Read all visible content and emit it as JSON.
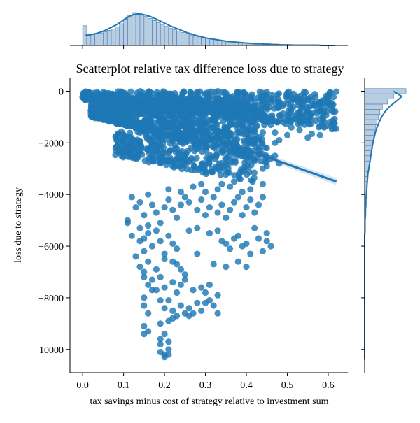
{
  "chart_data": {
    "type": "scatter",
    "title": "Scatterplot relative tax difference loss due to strategy",
    "xlabel": "tax savings minus cost of strategy relative to investment sum",
    "ylabel": "loss due to strategy",
    "xlim": [
      -0.031,
      0.648
    ],
    "ylim": [
      -10900,
      500
    ],
    "x_ticks": [
      0.0,
      0.1,
      0.2,
      0.3,
      0.4,
      0.5,
      0.6
    ],
    "x_tick_labels": [
      "0.0",
      "0.1",
      "0.2",
      "0.3",
      "0.4",
      "0.5",
      "0.6"
    ],
    "y_ticks": [
      0,
      -2000,
      -4000,
      -6000,
      -8000,
      -10000
    ],
    "y_tick_labels": [
      "0",
      "−2000",
      "−4000",
      "−6000",
      "−8000",
      "−10000"
    ],
    "grid": false,
    "marginals": "histogram with KDE on top (x) and right (y)",
    "colors": {
      "points": "#1f77b4",
      "hist_fill": "#b7cde2",
      "hist_edge": "#4a7ab0",
      "regression": "#1f77b4"
    },
    "regression_line": {
      "x": [
        0.0,
        0.62
      ],
      "y": [
        -20,
        -3500
      ]
    },
    "clusters": [
      {
        "x_range": [
          0.0,
          0.62
        ],
        "y_top": 0,
        "y_bottom_at_x0": -400,
        "y_bottom_at_x1": -1500,
        "n": 700,
        "role": "dense band near zero"
      },
      {
        "x_range": [
          0.02,
          0.45
        ],
        "y_top": -300,
        "y_bottom_at_x0": -1000,
        "y_bottom_at_x1": -2800,
        "n": 900,
        "role": "main wedge"
      },
      {
        "x_range": [
          0.08,
          0.42
        ],
        "y_top": -1500,
        "y_bottom_at_x0": -2500,
        "y_bottom_at_x1": -3600,
        "n": 350,
        "role": "lower wedge"
      }
    ],
    "points": [
      [
        0.12,
        -4100
      ],
      [
        0.13,
        -4500
      ],
      [
        0.14,
        -4300
      ],
      [
        0.15,
        -4800
      ],
      [
        0.16,
        -4000
      ],
      [
        0.17,
        -4400
      ],
      [
        0.11,
        -5000
      ],
      [
        0.14,
        -5300
      ],
      [
        0.15,
        -5700
      ],
      [
        0.16,
        -5200
      ],
      [
        0.18,
        -4700
      ],
      [
        0.19,
        -5100
      ],
      [
        0.2,
        -4500
      ],
      [
        0.21,
        -4200
      ],
      [
        0.22,
        -4600
      ],
      [
        0.23,
        -4900
      ],
      [
        0.24,
        -4400
      ],
      [
        0.25,
        -4100
      ],
      [
        0.26,
        -4300
      ],
      [
        0.28,
        -4600
      ],
      [
        0.29,
        -4200
      ],
      [
        0.3,
        -4800
      ],
      [
        0.31,
        -4500
      ],
      [
        0.32,
        -4100
      ],
      [
        0.33,
        -4700
      ],
      [
        0.34,
        -4400
      ],
      [
        0.35,
        -4900
      ],
      [
        0.36,
        -4600
      ],
      [
        0.37,
        -4300
      ],
      [
        0.38,
        -4100
      ],
      [
        0.39,
        -4800
      ],
      [
        0.4,
        -4500
      ],
      [
        0.41,
        -4200
      ],
      [
        0.42,
        -4700
      ],
      [
        0.43,
        -4400
      ],
      [
        0.44,
        -4100
      ],
      [
        0.21,
        -3800
      ],
      [
        0.24,
        -3900
      ],
      [
        0.27,
        -3700
      ],
      [
        0.3,
        -3900
      ],
      [
        0.33,
        -3800
      ],
      [
        0.36,
        -3700
      ],
      [
        0.39,
        -3900
      ],
      [
        0.41,
        -3800
      ],
      [
        0.44,
        -3600
      ],
      [
        0.37,
        -3500
      ],
      [
        0.34,
        -3600
      ],
      [
        0.29,
        -3600
      ],
      [
        0.11,
        -5100
      ],
      [
        0.12,
        -5600
      ],
      [
        0.14,
        -5800
      ],
      [
        0.15,
        -6200
      ],
      [
        0.16,
        -5500
      ],
      [
        0.17,
        -6000
      ],
      [
        0.18,
        -5400
      ],
      [
        0.19,
        -5800
      ],
      [
        0.2,
        -6300
      ],
      [
        0.21,
        -5600
      ],
      [
        0.22,
        -5900
      ],
      [
        0.23,
        -6100
      ],
      [
        0.26,
        -5400
      ],
      [
        0.28,
        -5300
      ],
      [
        0.31,
        -5500
      ],
      [
        0.33,
        -5400
      ],
      [
        0.34,
        -5800
      ],
      [
        0.35,
        -5900
      ],
      [
        0.36,
        -6100
      ],
      [
        0.37,
        -5700
      ],
      [
        0.38,
        -5600
      ],
      [
        0.4,
        -5900
      ],
      [
        0.42,
        -5300
      ],
      [
        0.43,
        -5700
      ],
      [
        0.45,
        -5800
      ],
      [
        0.46,
        -6000
      ],
      [
        0.44,
        -6200
      ],
      [
        0.41,
        -6300
      ],
      [
        0.39,
        -6000
      ],
      [
        0.45,
        -5500
      ],
      [
        0.13,
        -6400
      ],
      [
        0.14,
        -6800
      ],
      [
        0.15,
        -7000
      ],
      [
        0.16,
        -6600
      ],
      [
        0.18,
        -6900
      ],
      [
        0.2,
        -6500
      ],
      [
        0.22,
        -6600
      ],
      [
        0.23,
        -6700
      ],
      [
        0.24,
        -6900
      ],
      [
        0.25,
        -7100
      ],
      [
        0.28,
        -6300
      ],
      [
        0.32,
        -6700
      ],
      [
        0.38,
        -6600
      ],
      [
        0.4,
        -6800
      ],
      [
        0.35,
        -6800
      ],
      [
        0.15,
        -7200
      ],
      [
        0.16,
        -7500
      ],
      [
        0.17,
        -7300
      ],
      [
        0.18,
        -7700
      ],
      [
        0.19,
        -7200
      ],
      [
        0.2,
        -7600
      ],
      [
        0.22,
        -7400
      ],
      [
        0.23,
        -7800
      ],
      [
        0.24,
        -7500
      ],
      [
        0.25,
        -7300
      ],
      [
        0.27,
        -7700
      ],
      [
        0.29,
        -7600
      ],
      [
        0.3,
        -7800
      ],
      [
        0.31,
        -7500
      ],
      [
        0.33,
        -7900
      ],
      [
        0.17,
        -7700
      ],
      [
        0.15,
        -8000
      ],
      [
        0.15,
        -8300
      ],
      [
        0.16,
        -8600
      ],
      [
        0.19,
        -8100
      ],
      [
        0.2,
        -8400
      ],
      [
        0.21,
        -8100
      ],
      [
        0.22,
        -8500
      ],
      [
        0.23,
        -8700
      ],
      [
        0.24,
        -8300
      ],
      [
        0.25,
        -8600
      ],
      [
        0.26,
        -8400
      ],
      [
        0.27,
        -8600
      ],
      [
        0.28,
        -8200
      ],
      [
        0.29,
        -8500
      ],
      [
        0.3,
        -8200
      ],
      [
        0.31,
        -8100
      ],
      [
        0.32,
        -8300
      ],
      [
        0.33,
        -8600
      ],
      [
        0.21,
        -8900
      ],
      [
        0.22,
        -8800
      ],
      [
        0.19,
        -9000
      ],
      [
        0.26,
        -8700
      ],
      [
        0.15,
        -9100
      ],
      [
        0.15,
        -9400
      ],
      [
        0.16,
        -9300
      ],
      [
        0.19,
        -9600
      ],
      [
        0.19,
        -9800
      ],
      [
        0.2,
        -9400
      ],
      [
        0.19,
        -10100
      ],
      [
        0.2,
        -10200
      ],
      [
        0.2,
        -10300
      ],
      [
        0.21,
        -10200
      ],
      [
        0.21,
        -10000
      ],
      [
        0.21,
        -9700
      ],
      [
        0.46,
        -1300
      ],
      [
        0.47,
        -1600
      ],
      [
        0.49,
        -1200
      ],
      [
        0.51,
        -1400
      ],
      [
        0.53,
        -1500
      ],
      [
        0.55,
        -1800
      ],
      [
        0.58,
        -1700
      ],
      [
        0.59,
        -1400
      ],
      [
        0.62,
        -1450
      ],
      [
        0.56,
        -1650
      ],
      [
        0.48,
        -1900
      ],
      [
        0.5,
        -1700
      ],
      [
        0.44,
        -1600
      ],
      [
        0.47,
        -2000
      ],
      [
        0.45,
        -2200
      ],
      [
        0.43,
        -2400
      ],
      [
        0.46,
        -2600
      ],
      [
        0.45,
        -2900
      ],
      [
        0.47,
        -2500
      ],
      [
        0.48,
        -2800
      ],
      [
        0.42,
        -2700
      ],
      [
        0.44,
        -3000
      ],
      [
        0.5,
        -200
      ],
      [
        0.52,
        -300
      ],
      [
        0.54,
        -400
      ],
      [
        0.56,
        -350
      ],
      [
        0.58,
        -500
      ],
      [
        0.6,
        -300
      ],
      [
        0.48,
        -600
      ],
      [
        0.51,
        -700
      ],
      [
        0.53,
        -800
      ],
      [
        0.49,
        -500
      ],
      [
        0.55,
        -650
      ],
      [
        0.52,
        -950
      ]
    ],
    "marginal_x": {
      "bin_start": 0.0,
      "bin_width": 0.01,
      "counts": [
        60,
        34,
        34,
        36,
        38,
        42,
        46,
        50,
        56,
        66,
        80,
        90,
        100,
        95,
        92,
        88,
        82,
        76,
        70,
        64,
        58,
        52,
        48,
        44,
        40,
        36,
        32,
        28,
        26,
        24,
        22,
        20,
        18,
        16,
        14,
        12,
        11,
        10,
        9,
        8,
        7,
        6,
        5,
        5,
        4,
        4,
        3,
        3,
        2,
        2,
        2,
        1,
        1,
        1,
        1,
        1,
        1,
        0,
        0,
        0,
        0,
        1
      ],
      "kde_y": [
        30,
        32,
        34,
        37,
        41,
        46,
        52,
        58,
        65,
        73,
        82,
        89,
        94,
        96,
        95,
        92,
        88,
        83,
        77,
        71,
        65,
        59,
        54,
        49,
        44,
        39,
        35,
        31,
        28,
        25,
        22,
        20,
        18,
        16,
        14,
        12,
        11,
        10,
        9,
        8,
        7,
        6,
        5,
        5,
        4,
        4,
        3,
        3,
        2,
        2,
        2,
        1,
        1,
        1,
        1,
        1,
        1,
        1,
        0,
        0,
        0,
        0
      ]
    },
    "marginal_y": {
      "bin_start": -10500,
      "bin_width": 200,
      "counts": [
        0,
        0,
        0,
        0,
        0,
        0,
        0,
        0,
        0,
        0,
        0,
        0,
        0,
        0,
        0,
        0,
        0,
        0,
        0,
        0,
        0,
        0,
        0,
        0,
        0,
        1,
        1,
        1,
        1,
        2,
        2,
        3,
        4,
        5,
        6,
        7,
        8,
        10,
        12,
        14,
        16,
        18,
        20,
        22,
        24,
        27,
        30,
        33,
        37,
        43,
        55,
        70,
        100
      ],
      "kde_x": [
        0,
        0,
        0,
        0,
        0,
        0,
        0,
        0,
        0,
        0,
        0,
        0,
        0,
        0,
        0,
        0,
        0,
        0,
        0,
        0,
        0,
        0,
        0,
        0,
        0,
        1,
        1,
        1,
        2,
        2,
        3,
        3,
        4,
        5,
        6,
        7,
        8,
        10,
        12,
        14,
        16,
        18,
        20,
        23,
        26,
        30,
        35,
        41,
        49,
        60,
        76,
        90,
        70
      ]
    }
  }
}
